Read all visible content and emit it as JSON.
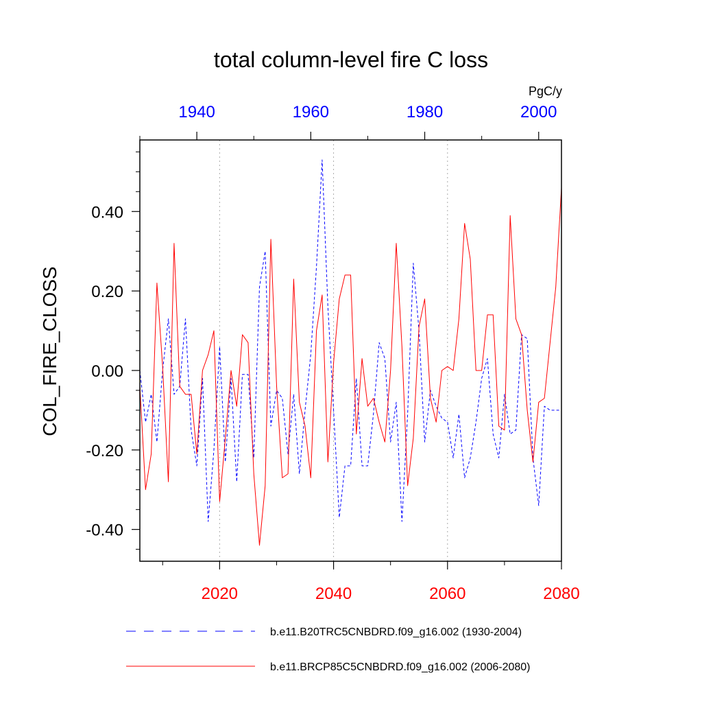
{
  "chart_data": {
    "type": "line",
    "title": "total column-level fire C loss",
    "ylabel": "COL_FIRE_CLOSS",
    "units": "PgC/y",
    "ylim": [
      -0.48,
      0.58
    ],
    "yticks": [
      "0.40",
      "0.20",
      "0.00",
      "-0.20",
      "-0.40"
    ],
    "ytick_values": [
      0.4,
      0.2,
      0.0,
      -0.2,
      -0.4
    ],
    "x_top": {
      "range": [
        1930,
        2004
      ],
      "ticks": [
        1940,
        1960,
        1980,
        2000
      ],
      "labels": [
        "1940",
        "1960",
        "1980",
        "2000"
      ],
      "color": "#0000ff"
    },
    "x_bottom": {
      "range": [
        2006,
        2080
      ],
      "ticks": [
        2020,
        2040,
        2060,
        2080
      ],
      "labels": [
        "2020",
        "2040",
        "2060",
        "2080"
      ],
      "color": "#ff0000"
    },
    "grid": "vertical dotted at bottom-axis major ticks",
    "series": [
      {
        "name": "b.e11.B20TRC5CNBDRD.f09_g16.002 (1930-2004)",
        "color": "#0000ff",
        "style": "dashed",
        "axis": "top",
        "x": [
          1930,
          1931,
          1932,
          1933,
          1934,
          1935,
          1936,
          1937,
          1938,
          1939,
          1940,
          1941,
          1942,
          1943,
          1944,
          1945,
          1946,
          1947,
          1948,
          1949,
          1950,
          1951,
          1952,
          1953,
          1954,
          1955,
          1956,
          1957,
          1958,
          1959,
          1960,
          1961,
          1962,
          1963,
          1964,
          1965,
          1966,
          1967,
          1968,
          1969,
          1970,
          1971,
          1972,
          1973,
          1974,
          1975,
          1976,
          1977,
          1978,
          1979,
          1980,
          1981,
          1982,
          1983,
          1984,
          1985,
          1986,
          1987,
          1988,
          1989,
          1990,
          1991,
          1992,
          1993,
          1994,
          1995,
          1996,
          1997,
          1998,
          1999,
          2000,
          2001,
          2002,
          2003,
          2004
        ],
        "values": [
          0.0,
          -0.13,
          -0.06,
          -0.18,
          0.0,
          0.13,
          -0.06,
          -0.04,
          0.13,
          -0.15,
          -0.24,
          -0.02,
          -0.38,
          -0.2,
          0.06,
          -0.23,
          -0.02,
          -0.28,
          -0.01,
          -0.01,
          -0.22,
          0.21,
          0.3,
          -0.14,
          -0.05,
          -0.07,
          -0.21,
          -0.06,
          -0.26,
          -0.1,
          0.04,
          0.26,
          0.53,
          0.16,
          -0.1,
          -0.37,
          -0.24,
          -0.24,
          -0.02,
          -0.24,
          -0.24,
          -0.11,
          0.07,
          0.03,
          -0.18,
          -0.08,
          -0.38,
          -0.11,
          0.27,
          0.1,
          -0.18,
          -0.05,
          -0.09,
          -0.12,
          -0.13,
          -0.22,
          -0.11,
          -0.27,
          -0.22,
          -0.13,
          -0.02,
          0.03,
          -0.16,
          -0.22,
          -0.06,
          -0.16,
          -0.15,
          0.09,
          0.08,
          -0.22,
          -0.34,
          -0.09,
          -0.1,
          -0.1,
          -0.1
        ]
      },
      {
        "name": "b.e11.BRCP85C5CNBDRD.f09_g16.002 (2006-2080)",
        "color": "#ff0000",
        "style": "solid",
        "axis": "bottom",
        "x": [
          2006,
          2007,
          2008,
          2009,
          2010,
          2011,
          2012,
          2013,
          2014,
          2015,
          2016,
          2017,
          2018,
          2019,
          2020,
          2021,
          2022,
          2023,
          2024,
          2025,
          2026,
          2027,
          2028,
          2029,
          2030,
          2031,
          2032,
          2033,
          2034,
          2035,
          2036,
          2037,
          2038,
          2039,
          2040,
          2041,
          2042,
          2043,
          2044,
          2045,
          2046,
          2047,
          2048,
          2049,
          2050,
          2051,
          2052,
          2053,
          2054,
          2055,
          2056,
          2057,
          2058,
          2059,
          2060,
          2061,
          2062,
          2063,
          2064,
          2065,
          2066,
          2067,
          2068,
          2069,
          2070,
          2071,
          2072,
          2073,
          2074,
          2075,
          2076,
          2077,
          2078,
          2079,
          2080
        ],
        "values": [
          -0.04,
          -0.3,
          -0.21,
          0.22,
          0.01,
          -0.28,
          0.32,
          -0.04,
          -0.06,
          -0.06,
          -0.21,
          0.0,
          0.04,
          0.1,
          -0.33,
          -0.17,
          0.0,
          -0.09,
          0.09,
          0.07,
          -0.26,
          -0.44,
          -0.29,
          0.33,
          -0.04,
          -0.27,
          -0.26,
          0.23,
          -0.08,
          -0.14,
          -0.27,
          0.1,
          0.19,
          -0.23,
          0.02,
          0.18,
          0.24,
          0.24,
          -0.16,
          0.03,
          -0.09,
          -0.07,
          -0.13,
          -0.18,
          0.0,
          0.32,
          0.06,
          -0.29,
          -0.17,
          0.11,
          0.18,
          -0.07,
          -0.13,
          0.0,
          0.01,
          0.0,
          0.13,
          0.37,
          0.28,
          0.0,
          0.0,
          0.14,
          0.14,
          -0.14,
          -0.15,
          0.39,
          0.13,
          0.09,
          -0.1,
          -0.23,
          -0.08,
          -0.07,
          0.07,
          0.21,
          0.46
        ]
      }
    ]
  }
}
